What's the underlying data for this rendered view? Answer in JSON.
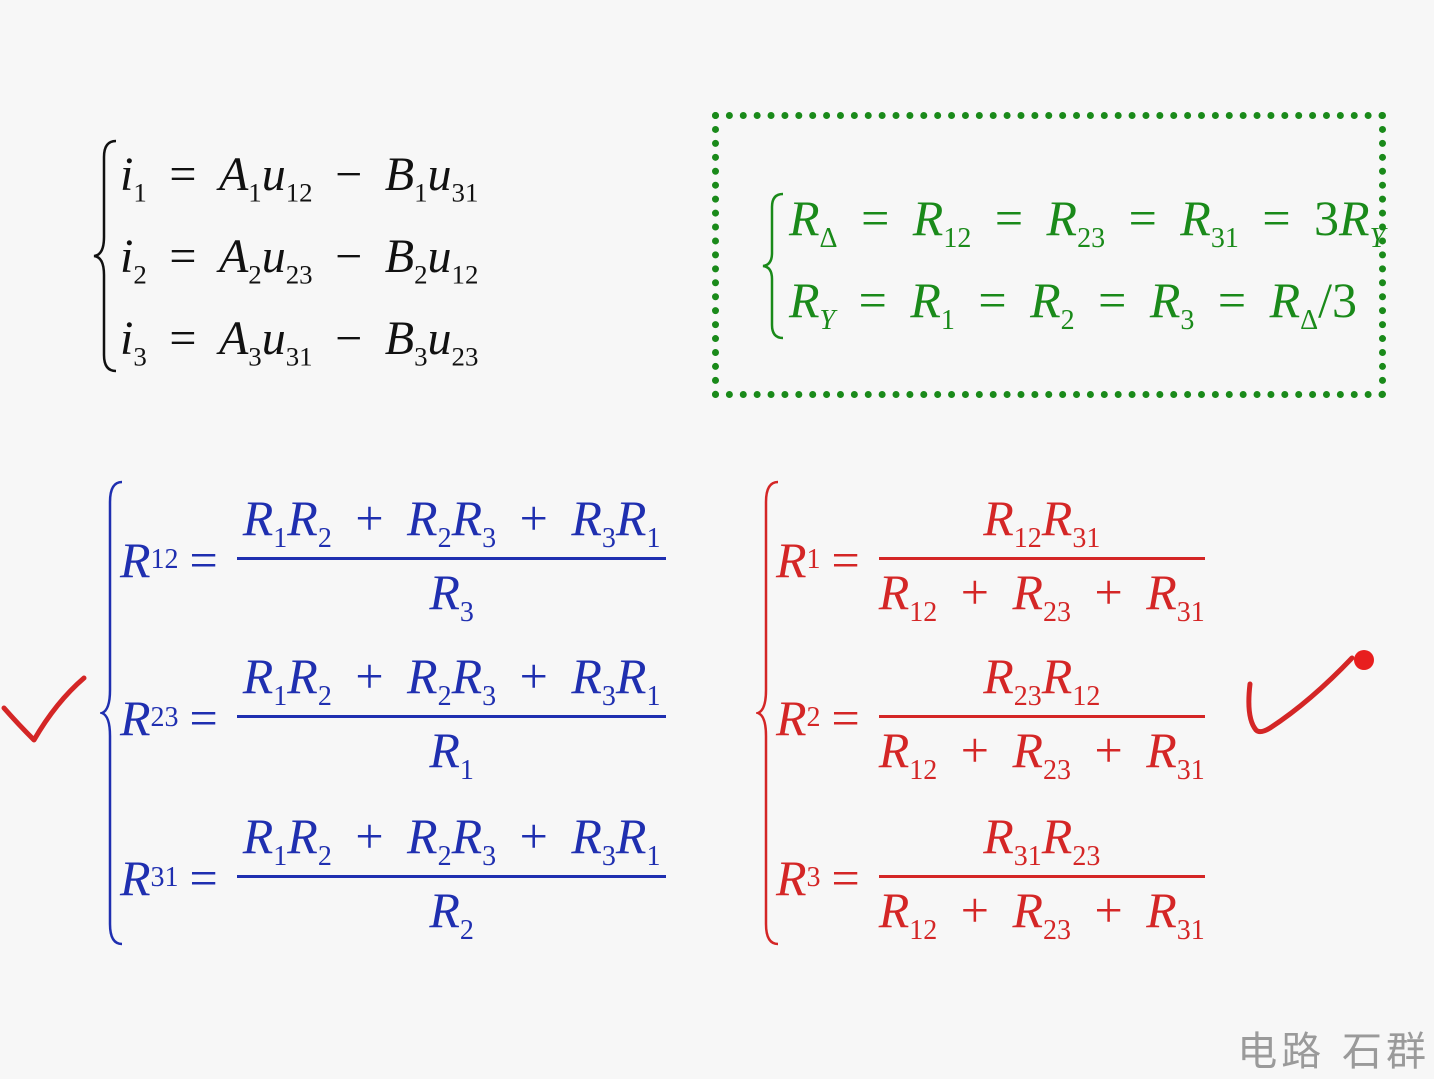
{
  "currents": [
    {
      "lhs": "i",
      "lhs_sub": "1",
      "a": "A",
      "a_sub": "1",
      "ua": "u",
      "ua_sub": "12",
      "b": "B",
      "b_sub": "1",
      "ub": "u",
      "ub_sub": "31"
    },
    {
      "lhs": "i",
      "lhs_sub": "2",
      "a": "A",
      "a_sub": "2",
      "ua": "u",
      "ua_sub": "23",
      "b": "B",
      "b_sub": "2",
      "ub": "u",
      "ub_sub": "12"
    },
    {
      "lhs": "i",
      "lhs_sub": "3",
      "a": "A",
      "a_sub": "3",
      "ua": "u",
      "ua_sub": "31",
      "b": "B",
      "b_sub": "3",
      "ub": "u",
      "ub_sub": "23"
    }
  ],
  "equivalence": {
    "line1": {
      "r": "R",
      "s0": "Δ",
      "s1": "12",
      "s2": "23",
      "s3": "31",
      "coef": "3",
      "sy": "Y"
    },
    "line2": {
      "r": "R",
      "s0": "Y",
      "s1": "1",
      "s2": "2",
      "s3": "3",
      "sd": "Δ",
      "div": "/3"
    }
  },
  "y_to_delta": [
    {
      "lhs_sub": "12",
      "den_sub": "3"
    },
    {
      "lhs_sub": "23",
      "den_sub": "1"
    },
    {
      "lhs_sub": "31",
      "den_sub": "2"
    }
  ],
  "delta_to_y": [
    {
      "lhs_sub": "1",
      "n1": "12",
      "n2": "31"
    },
    {
      "lhs_sub": "2",
      "n1": "23",
      "n2": "12"
    },
    {
      "lhs_sub": "3",
      "n1": "31",
      "n2": "23"
    }
  ],
  "common": {
    "R": "R",
    "s1": "1",
    "s2": "2",
    "s3": "3",
    "s12": "12",
    "s23": "23",
    "s31": "31",
    "eq": "=",
    "plus": "+",
    "minus": "−"
  },
  "watermark": "电路  石群",
  "colors": {
    "blue": "#1f2fb0",
    "red": "#d42626",
    "green": "#1a8a1a",
    "black": "#111111"
  }
}
